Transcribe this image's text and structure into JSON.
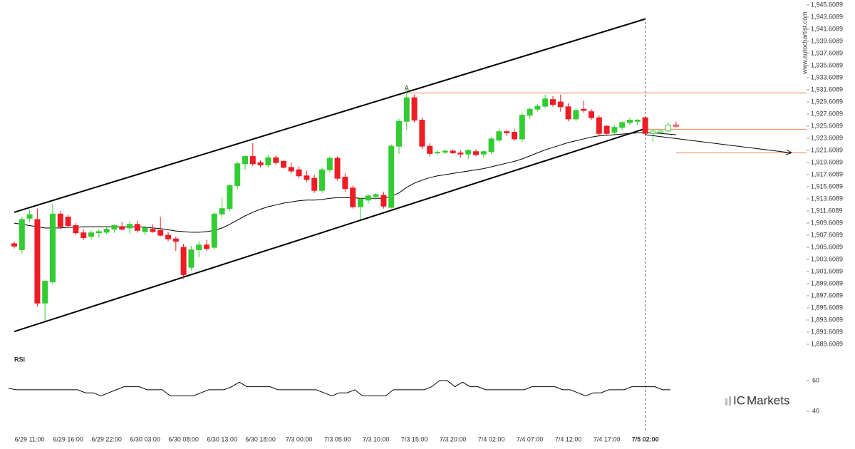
{
  "chart_data": {
    "type": "candlestick",
    "categories": [
      null,
      null,
      "6/29 11:00",
      null,
      null,
      null,
      null,
      "6/29 16:00",
      null,
      null,
      null,
      null,
      "6/29 22:00",
      null,
      null,
      null,
      null,
      "6/30 03:00",
      null,
      null,
      null,
      null,
      "6/30 08:00",
      null,
      null,
      null,
      null,
      "6/30 13:00",
      null,
      null,
      null,
      null,
      "6/30 18:00",
      null,
      null,
      null,
      null,
      "7/3 00:00",
      null,
      null,
      null,
      null,
      "7/3 05:00",
      null,
      null,
      null,
      null,
      "7/3 10:00",
      null,
      null,
      null,
      null,
      "7/3 15:00",
      null,
      null,
      null,
      null,
      "7/3 20:00",
      null,
      null,
      null,
      null,
      "7/4 02:00",
      null,
      null,
      null,
      null,
      "7/4 07:00",
      null,
      null,
      null,
      null,
      "7/4 12:00",
      null,
      null,
      null,
      null,
      "7/4 17:00",
      null,
      null,
      null,
      null,
      "7/5 02:00",
      null,
      null,
      null,
      null
    ],
    "open": [
      1906.2,
      1905.2,
      1910.4,
      1910.2,
      1896.4,
      1899.9,
      1911.1,
      1910.6,
      1909.2,
      1908.0,
      1907.4,
      1908.0,
      1908.1,
      1908.6,
      1909.0,
      1908.8,
      1909.4,
      1908.2,
      1908.6,
      1908.4,
      1907.6,
      1907.0,
      1905.6,
      1902.3,
      1905.2,
      1906.0,
      1905.6,
      1911.1,
      1912.0,
      1915.8,
      1919.4,
      1920.6,
      1919.6,
      1919.2,
      1920.4,
      1919.8,
      1918.8,
      1918.4,
      1917.4,
      1917.0,
      1915.0,
      1918.4,
      1920.3,
      1917.2,
      1915.4,
      1912.3,
      1913.4,
      1914.0,
      1914.2,
      1912.2,
      1922.3,
      1926.4,
      1930.3,
      1926.6,
      1922.3,
      1921.2,
      1921.3,
      1921.5,
      1921.2,
      1921.0,
      1921.4,
      1921.0,
      1921.4,
      1923.3,
      1924.7,
      1924.6,
      1923.5,
      1927.4,
      1928.4,
      1928.9,
      1930.0,
      1929.6,
      1928.8,
      1926.8,
      1928.4,
      1928.0,
      1927.0,
      1925.6,
      1924.6,
      1925.4,
      1926.2,
      1926.4,
      1927.0,
      1924.4,
      1924.6,
      1924.8,
      1925.8
    ],
    "high": [
      1906.6,
      1910.6,
      1911.8,
      1912.0,
      1900.2,
      1912.8,
      1911.6,
      1911.0,
      1909.6,
      1908.6,
      1908.4,
      1908.6,
      1909.0,
      1909.4,
      1909.8,
      1909.9,
      1910.0,
      1909.2,
      1909.4,
      1910.6,
      1908.2,
      1907.4,
      1906.2,
      1905.8,
      1906.6,
      1906.8,
      1911.4,
      1913.8,
      1916.0,
      1919.8,
      1920.8,
      1922.8,
      1920.0,
      1920.8,
      1920.8,
      1920.0,
      1919.6,
      1919.0,
      1918.2,
      1917.6,
      1918.8,
      1920.6,
      1920.6,
      1917.8,
      1915.8,
      1913.8,
      1914.4,
      1914.6,
      1914.8,
      1922.6,
      1926.8,
      1931.8,
      1930.8,
      1927.0,
      1922.8,
      1921.6,
      1921.8,
      1921.8,
      1921.6,
      1921.8,
      1921.8,
      1921.6,
      1923.8,
      1925.2,
      1925.0,
      1925.2,
      1927.8,
      1928.6,
      1929.2,
      1930.8,
      1930.6,
      1930.8,
      1929.4,
      1928.6,
      1929.8,
      1928.4,
      1927.4,
      1925.8,
      1925.8,
      1926.4,
      1927.0,
      1926.8,
      1927.2,
      1925.0,
      1925.0,
      1926.2,
      1926.4
    ],
    "low": [
      1905.4,
      1904.6,
      1909.8,
      1895.8,
      1893.5,
      1899.5,
      1908.6,
      1908.8,
      1907.6,
      1906.8,
      1906.9,
      1907.2,
      1907.8,
      1908.0,
      1908.4,
      1907.9,
      1908.0,
      1907.6,
      1908.0,
      1907.4,
      1906.6,
      1905.0,
      1900.4,
      1901.8,
      1904.0,
      1905.0,
      1905.2,
      1910.4,
      1911.6,
      1915.2,
      1918.4,
      1919.0,
      1918.8,
      1918.8,
      1919.2,
      1918.6,
      1917.8,
      1917.0,
      1916.4,
      1914.6,
      1914.6,
      1918.0,
      1916.6,
      1914.8,
      1912.0,
      1910.2,
      1912.8,
      1913.4,
      1912.0,
      1912.0,
      1921.0,
      1925.0,
      1926.2,
      1921.8,
      1920.6,
      1920.8,
      1921.0,
      1921.0,
      1920.4,
      1920.2,
      1920.6,
      1920.4,
      1921.0,
      1923.0,
      1924.0,
      1923.2,
      1923.0,
      1926.8,
      1928.0,
      1928.6,
      1928.8,
      1928.0,
      1926.4,
      1926.4,
      1927.8,
      1926.6,
      1924.0,
      1924.2,
      1924.2,
      1925.0,
      1925.8,
      1925.8,
      1924.0,
      1923.0,
      1924.2,
      1924.6,
      1925.4
    ],
    "close": [
      1905.8,
      1910.2,
      1911.0,
      1896.4,
      1900.0,
      1911.1,
      1909.0,
      1909.2,
      1908.0,
      1907.2,
      1908.0,
      1908.2,
      1908.6,
      1909.2,
      1908.6,
      1909.4,
      1908.4,
      1908.8,
      1908.2,
      1907.6,
      1907.0,
      1906.6,
      1901.1,
      1905.2,
      1906.0,
      1905.4,
      1911.1,
      1912.0,
      1915.8,
      1919.4,
      1920.6,
      1919.4,
      1919.2,
      1920.4,
      1919.6,
      1918.8,
      1918.2,
      1917.4,
      1916.8,
      1915.0,
      1918.4,
      1920.3,
      1917.0,
      1915.3,
      1912.3,
      1913.6,
      1914.1,
      1914.3,
      1912.4,
      1922.3,
      1926.4,
      1930.3,
      1926.6,
      1922.3,
      1921.1,
      1921.3,
      1921.5,
      1921.2,
      1921.0,
      1921.6,
      1920.9,
      1921.4,
      1923.5,
      1924.7,
      1924.5,
      1923.5,
      1927.4,
      1928.4,
      1928.9,
      1930.1,
      1929.2,
      1928.8,
      1926.8,
      1928.2,
      1928.2,
      1927.0,
      1924.4,
      1924.4,
      1925.4,
      1926.2,
      1926.6,
      1926.6,
      1924.4,
      1924.8,
      1924.8,
      1925.8,
      1925.6
    ],
    "ma": [
      1909.6,
      1909.4,
      1909.2,
      1909.0,
      1908.8,
      1908.8,
      1908.8,
      1908.9,
      1908.9,
      1909.0,
      1909.0,
      1909.0,
      1909.0,
      1909.0,
      1909.0,
      1909.0,
      1909.0,
      1908.9,
      1908.8,
      1908.7,
      1908.5,
      1908.3,
      1908.2,
      1908.1,
      1908.1,
      1908.2,
      1908.4,
      1908.8,
      1909.4,
      1910.1,
      1910.8,
      1911.4,
      1911.9,
      1912.3,
      1912.6,
      1912.9,
      1913.1,
      1913.3,
      1913.4,
      1913.4,
      1913.5,
      1913.7,
      1913.8,
      1913.8,
      1913.8,
      1913.7,
      1913.7,
      1913.7,
      1913.7,
      1914.0,
      1914.6,
      1915.5,
      1916.2,
      1916.7,
      1917.1,
      1917.4,
      1917.6,
      1917.8,
      1918.0,
      1918.2,
      1918.4,
      1918.6,
      1918.9,
      1919.2,
      1919.5,
      1919.8,
      1920.2,
      1920.7,
      1921.2,
      1921.7,
      1922.1,
      1922.5,
      1922.9,
      1923.2,
      1923.5,
      1923.8,
      1924.0,
      1924.1,
      1924.2,
      1924.3,
      1924.4,
      1924.5,
      1924.5,
      1924.5,
      1924.4,
      1924.3,
      1924.2
    ],
    "up_color": "#33cc33",
    "down_color": "#ee1c25",
    "ma_color": "#000000",
    "level_color": "#f08050",
    "ylim": [
      1889.6089,
      1945.6089
    ],
    "yticks": [
      {
        "value": 1889.6089,
        "label": "1,889.6089"
      },
      {
        "value": 1891.6089,
        "label": "1,891.6089"
      },
      {
        "value": 1893.6089,
        "label": "1,893.6089"
      },
      {
        "value": 1895.6089,
        "label": "1,895.6089"
      },
      {
        "value": 1897.6089,
        "label": "1,897.6089"
      },
      {
        "value": 1899.6089,
        "label": "1,899.6089"
      },
      {
        "value": 1901.6089,
        "label": "1,901.6089"
      },
      {
        "value": 1903.6089,
        "label": "1,903.6089"
      },
      {
        "value": 1905.6089,
        "label": "1,905.6089"
      },
      {
        "value": 1907.6089,
        "label": "1,907.6089"
      },
      {
        "value": 1909.6089,
        "label": "1,909.6089"
      },
      {
        "value": 1911.6089,
        "label": "1,911.6089"
      },
      {
        "value": 1913.6089,
        "label": "1,913.6089"
      },
      {
        "value": 1915.6089,
        "label": "1,915.6089"
      },
      {
        "value": 1917.6089,
        "label": "1,917.6089"
      },
      {
        "value": 1919.6089,
        "label": "1,919.6089"
      },
      {
        "value": 1921.6089,
        "label": "1,921.6089"
      },
      {
        "value": 1923.6089,
        "label": "1,923.6089"
      },
      {
        "value": 1925.6089,
        "label": "1,925.6089"
      },
      {
        "value": 1927.6089,
        "label": "1,927.6089"
      },
      {
        "value": 1929.6089,
        "label": "1,929.6089"
      },
      {
        "value": 1931.6089,
        "label": "1,931.6089"
      },
      {
        "value": 1933.6089,
        "label": "1,933.6089"
      },
      {
        "value": 1935.6089,
        "label": "1,935.6089"
      },
      {
        "value": 1937.6089,
        "label": "1,937.6089"
      },
      {
        "value": 1939.6089,
        "label": "1,939.6089"
      },
      {
        "value": 1941.6089,
        "label": "1,941.6089"
      },
      {
        "value": 1943.6089,
        "label": "1,943.6089"
      },
      {
        "value": 1945.6089,
        "label": "1,945.6089"
      }
    ],
    "trend_lines": [
      {
        "from_index": 0,
        "from": 1911.4,
        "to_index": 82,
        "to": 1943.3
      },
      {
        "from_index": 0,
        "from": 1891.7,
        "to_index": 82,
        "to": 1925.2
      }
    ],
    "levels": [
      {
        "value": 1931.1,
        "from_index": 51,
        "label": "A"
      },
      {
        "value": 1925.1,
        "from_index": 82
      },
      {
        "value": 1921.2,
        "from_index": 86
      }
    ],
    "forecast": {
      "from_index": 82,
      "from": 1924.2,
      "to_index": 101,
      "to": 1921.2
    },
    "rsi": {
      "title": "RSI",
      "ylim": [
        30,
        70
      ],
      "yticks": [
        40,
        60
      ],
      "values": [
        55,
        54,
        54,
        54,
        54,
        54,
        54,
        54,
        54,
        54,
        52,
        52,
        50,
        52,
        54,
        56,
        56,
        56,
        54,
        54,
        54,
        50,
        50,
        50,
        50,
        52,
        54,
        54,
        54,
        56,
        59,
        56,
        56,
        56,
        56,
        54,
        54,
        54,
        54,
        54,
        54,
        52,
        50,
        52,
        52,
        54,
        50,
        50,
        50,
        50,
        54,
        54,
        54,
        54,
        54,
        56,
        60,
        60,
        56,
        59,
        56,
        56,
        54,
        54,
        54,
        54,
        54,
        54,
        56,
        56,
        56,
        56,
        54,
        54,
        52,
        50,
        52,
        52,
        54,
        54,
        54,
        56,
        56,
        56,
        56,
        54,
        54
      ]
    },
    "watermark": "www.autochartist.com",
    "logo": {
      "brand": "IC",
      "rest": "Markets"
    }
  }
}
